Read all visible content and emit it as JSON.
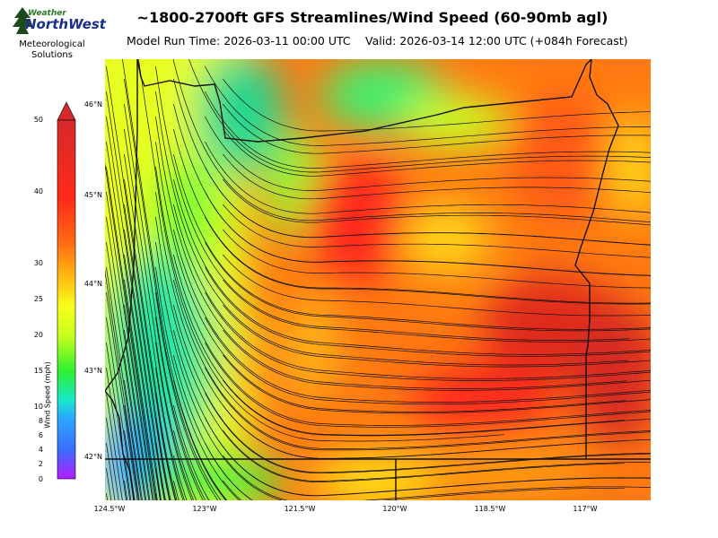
{
  "header": {
    "title": "~1800-2700ft GFS Streamlines/Wind Speed (60-90mb agl)",
    "model_run": "Model Run Time: 2026-03-11 00:00 UTC",
    "valid": "Valid: 2026-03-14 12:00 UTC  (+084h Forecast)"
  },
  "logo": {
    "line_small": "Weather",
    "line_main": "NorthWest",
    "sub1": "Meteorological",
    "sub2": "Solutions",
    "colors": {
      "green": "#2a7a2a",
      "blue": "#1b2f8a"
    }
  },
  "colorbar": {
    "label": "Wind Speed (mph)",
    "ticks": [
      "0",
      "2",
      "4",
      "6",
      "8",
      "10",
      "15",
      "20",
      "25",
      "30",
      "40",
      "50"
    ],
    "colors": [
      "#b51cff",
      "#3aa0ff",
      "#18f0a0",
      "#2ef02e",
      "#f8ff1a",
      "#ff9a10",
      "#ff2a1a",
      "#d42a2a"
    ]
  },
  "map": {
    "lat_labels": [
      "46°N",
      "45°N",
      "44°N",
      "43°N",
      "42°N"
    ],
    "lon_labels": [
      "124.5°W",
      "123°W",
      "121.5°W",
      "120°W",
      "118.5°W",
      "117°W"
    ],
    "region": "Oregon"
  }
}
